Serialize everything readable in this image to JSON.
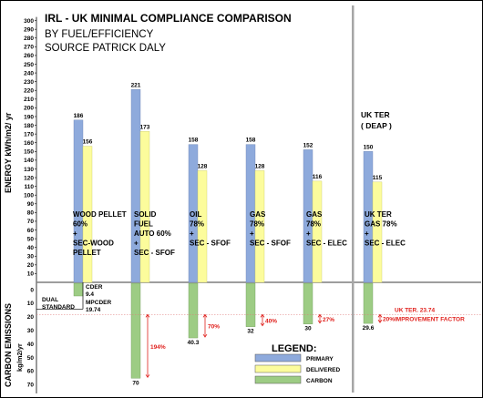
{
  "chart_data": {
    "type": "bar",
    "title": "IRL - UK MINIMAL COMPLIANCE COMPARISON",
    "subtitle_lines": [
      "BY FUEL/EFFICIENCY",
      "SOURCE  PATRICK DALY"
    ],
    "ylabel_energy": "ENERGY  kWh/m2/ yr",
    "ylabel_carbon": "CARBON EMISSIONS",
    "ylabel_carbon_unit": "kg/m2/yr",
    "energy_ticks": [
      "300",
      "290",
      "280",
      "270",
      "260",
      "250",
      "240",
      "230",
      "220",
      "210",
      "200",
      "190",
      "180",
      "170",
      "160",
      "150",
      "140",
      "130",
      "120",
      "110",
      "100",
      "90",
      "80",
      "70",
      "60",
      "50",
      "40",
      "30",
      "20",
      "10"
    ],
    "carbon_ticks": [
      "0",
      "10",
      "20",
      "30",
      "40",
      "50",
      "60",
      "70"
    ],
    "ylim_energy": [
      0,
      300
    ],
    "ylim_carbon": [
      0,
      70
    ],
    "groups": [
      {
        "lines": [
          "WOOD PELLET",
          "60%",
          "+",
          "SEC-WOOD",
          "PELLET"
        ],
        "primary": 186,
        "primary_label": "186",
        "delivered": 156,
        "delivered_label": "156",
        "carbon": 9.4,
        "carbon_label": ""
      },
      {
        "lines": [
          "SOLID",
          "FUEL",
          "AUTO 60%",
          "+",
          "SEC - SFOF"
        ],
        "primary": 221,
        "primary_label": "221",
        "delivered": 173,
        "delivered_label": "173",
        "carbon": 70,
        "carbon_label": "70",
        "improvement": "194%"
      },
      {
        "lines": [
          "OIL",
          "78%",
          "+",
          "SEC - SFOF"
        ],
        "primary": 158,
        "primary_label": "158",
        "delivered": 128,
        "delivered_label": "128",
        "carbon": 40.3,
        "carbon_label": "40.3",
        "improvement": "70%"
      },
      {
        "lines": [
          "GAS",
          "78%",
          "+",
          "SEC - SFOF"
        ],
        "primary": 158,
        "primary_label": "158",
        "delivered": 128,
        "delivered_label": "128",
        "carbon": 32,
        "carbon_label": "32",
        "improvement": "40%"
      },
      {
        "lines": [
          "GAS",
          "78%",
          "+",
          "SEC - ELEC"
        ],
        "primary": 152,
        "primary_label": "152",
        "delivered": 116,
        "delivered_label": "116",
        "carbon": 30,
        "carbon_label": "30",
        "improvement": "27%"
      },
      {
        "lines": [
          "UK TER",
          "GAS 78%",
          "+",
          "SEC - ELEC"
        ],
        "primary": 150,
        "primary_label": "150",
        "delivered": 115,
        "delivered_label": "115",
        "carbon": 29.6,
        "carbon_label": "29.6",
        "improvement": "20%"
      }
    ],
    "series": [
      {
        "name": "PRIMARY",
        "color": "#8eaadc"
      },
      {
        "name": "DELIVERED",
        "color": "#fcfc9c"
      },
      {
        "name": "CARBON",
        "color": "#9dcc84"
      }
    ],
    "legend_title": "LEGEND:",
    "legend_position": "bottom-right",
    "uk_ter_heading": [
      "UK TER",
      "( DEAP )"
    ],
    "cder_lines": [
      "CDER",
      "9.4"
    ],
    "mpcder_lines": [
      "MPCDER",
      "19.74"
    ],
    "dual_standard_lines": [
      "DUAL",
      "STANDARD"
    ],
    "mpcder_value": 19.74,
    "uk_ter_carbon": 23.74,
    "uk_ter_annotation": "UK TER. 23.74",
    "improvement_factor_label": "IMPROVEMENT FACTOR",
    "accent_color": "#e0201c",
    "grid": false
  }
}
